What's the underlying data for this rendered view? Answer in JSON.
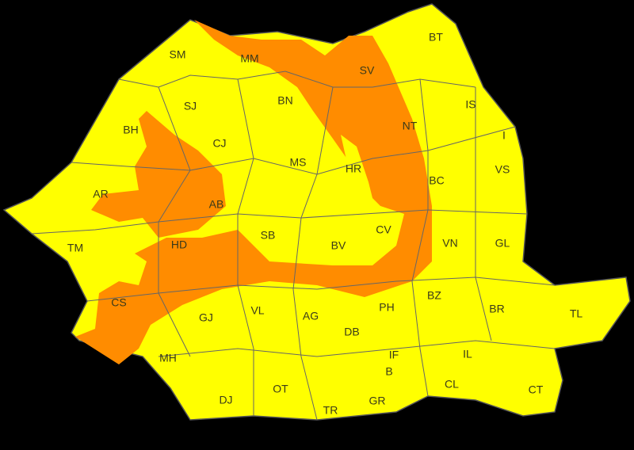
{
  "map": {
    "counties": [
      {
        "label": "SM"
      },
      {
        "label": "MM"
      },
      {
        "label": "SV"
      },
      {
        "label": "BT"
      },
      {
        "label": "SJ"
      },
      {
        "label": "BN"
      },
      {
        "label": "BH"
      },
      {
        "label": "CJ"
      },
      {
        "label": "NT"
      },
      {
        "label": "IS"
      },
      {
        "label": "I"
      },
      {
        "label": "MS"
      },
      {
        "label": "HR"
      },
      {
        "label": "VS"
      },
      {
        "label": "BC"
      },
      {
        "label": "AR"
      },
      {
        "label": "AB"
      },
      {
        "label": "CV"
      },
      {
        "label": "SB"
      },
      {
        "label": "BV"
      },
      {
        "label": "VN"
      },
      {
        "label": "GL"
      },
      {
        "label": "TM"
      },
      {
        "label": "HD"
      },
      {
        "label": "CS"
      },
      {
        "label": "GJ"
      },
      {
        "label": "VL"
      },
      {
        "label": "AG"
      },
      {
        "label": "DB"
      },
      {
        "label": "PH"
      },
      {
        "label": "BZ"
      },
      {
        "label": "BR"
      },
      {
        "label": "TL"
      },
      {
        "label": "IF"
      },
      {
        "label": "B"
      },
      {
        "label": "IL"
      },
      {
        "label": "MH"
      },
      {
        "label": "DJ"
      },
      {
        "label": "OT"
      },
      {
        "label": "TR"
      },
      {
        "label": "GR"
      },
      {
        "label": "CL"
      },
      {
        "label": "CT"
      }
    ]
  }
}
